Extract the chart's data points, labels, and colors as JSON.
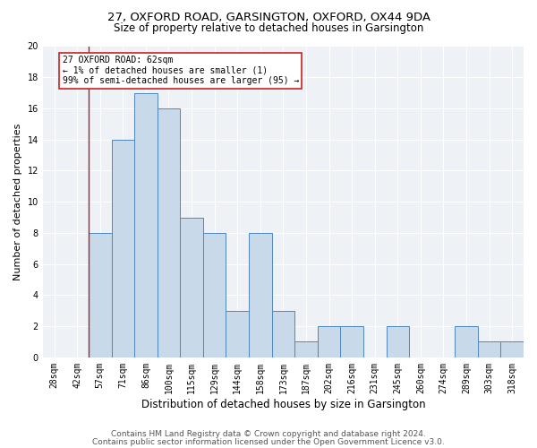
{
  "title1": "27, OXFORD ROAD, GARSINGTON, OXFORD, OX44 9DA",
  "title2": "Size of property relative to detached houses in Garsington",
  "xlabel": "Distribution of detached houses by size in Garsington",
  "ylabel": "Number of detached properties",
  "categories": [
    "28sqm",
    "42sqm",
    "57sqm",
    "71sqm",
    "86sqm",
    "100sqm",
    "115sqm",
    "129sqm",
    "144sqm",
    "158sqm",
    "173sqm",
    "187sqm",
    "202sqm",
    "216sqm",
    "231sqm",
    "245sqm",
    "260sqm",
    "274sqm",
    "289sqm",
    "303sqm",
    "318sqm"
  ],
  "values": [
    0,
    0,
    8,
    14,
    17,
    16,
    9,
    8,
    3,
    8,
    3,
    1,
    2,
    2,
    0,
    2,
    0,
    0,
    2,
    1,
    1
  ],
  "bar_color": "#c8d9ea",
  "bar_edge_color": "#4f86c0",
  "vline_x": 1.5,
  "vline_color": "#aa2222",
  "annotation_label": "27 OXFORD ROAD: 62sqm",
  "annotation_line1": "← 1% of detached houses are smaller (1)",
  "annotation_line2": "99% of semi-detached houses are larger (95) →",
  "annotation_box_color": "#cc2222",
  "ylim": [
    0,
    20
  ],
  "yticks": [
    0,
    2,
    4,
    6,
    8,
    10,
    12,
    14,
    16,
    18,
    20
  ],
  "bg_color": "#eef2f7",
  "grid_color": "#ffffff",
  "title1_fontsize": 9.5,
  "title2_fontsize": 8.5,
  "axis_label_fontsize": 8,
  "tick_fontsize": 7,
  "annotation_fontsize": 7,
  "footer_fontsize": 6.5,
  "footer1": "Contains HM Land Registry data © Crown copyright and database right 2024.",
  "footer2": "Contains public sector information licensed under the Open Government Licence v3.0."
}
